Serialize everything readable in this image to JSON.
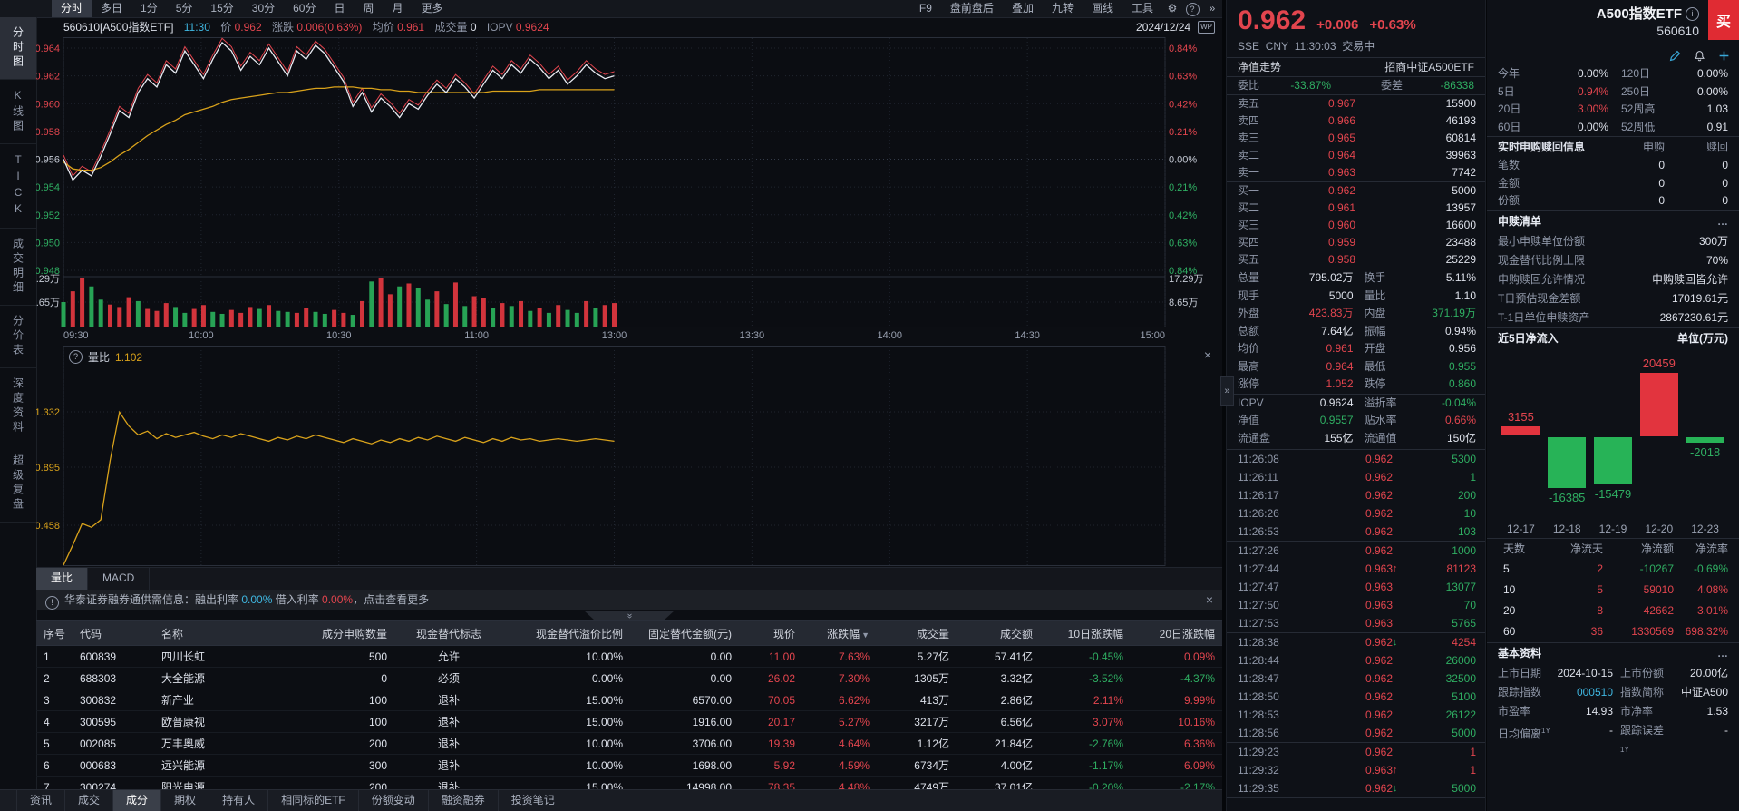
{
  "topbar": {
    "tabs": [
      "分时",
      "多日",
      "1分",
      "5分",
      "15分",
      "30分",
      "60分",
      "日",
      "周",
      "月",
      "更多"
    ],
    "active": "分时",
    "right_items": [
      "F9",
      "盘前盘后",
      "叠加",
      "九转",
      "画线",
      "工具"
    ],
    "gear_icon": "⚙",
    "help_icon": "?",
    "more_icon": "»"
  },
  "sidebar": {
    "items": [
      "分时图",
      "K线图",
      "TICK",
      "成交明细",
      "分价表",
      "深度资料",
      "超级复盘"
    ],
    "active": "分时图"
  },
  "chart_header": {
    "symbol": "560610[A500指数ETF]",
    "time": "11:30",
    "price_label": "价",
    "price": "0.962",
    "change_label": "涨跌",
    "change": "0.006(0.63%)",
    "avg_label": "均价",
    "avg": "0.961",
    "vol_label": "成交量",
    "vol": "0",
    "iopv_label": "IOPV",
    "iopv": "0.9624",
    "date": "2024/12/24",
    "wp_icon": "WP"
  },
  "chart_data": [
    {
      "id": "intraday",
      "type": "line",
      "title": "分时走势",
      "x_span": [
        "09:30",
        "11:30"
      ],
      "axis_times": [
        "09:30",
        "10:00",
        "10:30",
        "11:00",
        "13:00",
        "13:30",
        "14:00",
        "14:30",
        "15:00"
      ],
      "y_left": [
        "0.964",
        "0.962",
        "0.960",
        "0.958",
        "0.956",
        "0.954",
        "0.952",
        "0.950",
        "0.948"
      ],
      "y_right": [
        "0.84%",
        "0.63%",
        "0.42%",
        "0.21%",
        "0.00%",
        "0.21%",
        "0.42%",
        "0.63%",
        "0.84%"
      ],
      "prev_close": 0.956,
      "series": [
        {
          "name": "price",
          "color": "#e8ebf2",
          "values": [
            0.956,
            0.9545,
            0.9552,
            0.9548,
            0.9562,
            0.9578,
            0.9595,
            0.959,
            0.9608,
            0.9618,
            0.9612,
            0.9628,
            0.9622,
            0.9638,
            0.9628,
            0.9618,
            0.9632,
            0.9644,
            0.9638,
            0.9624,
            0.9634,
            0.9628,
            0.964,
            0.963,
            0.962,
            0.9638,
            0.9632,
            0.9642,
            0.9636,
            0.9626,
            0.9616,
            0.9598,
            0.9608,
            0.9594,
            0.9604,
            0.9598,
            0.959,
            0.96,
            0.9596,
            0.9606,
            0.9614,
            0.9608,
            0.9618,
            0.9612,
            0.9604,
            0.9614,
            0.9624,
            0.9618,
            0.9628,
            0.9622,
            0.9632,
            0.9626,
            0.9618,
            0.9624,
            0.9614,
            0.962,
            0.9628,
            0.9622,
            0.9618,
            0.962
          ]
        },
        {
          "name": "avg",
          "color": "#d9a21b",
          "values": [
            0.9558,
            0.9553,
            0.9552,
            0.9552,
            0.9554,
            0.9558,
            0.9563,
            0.9567,
            0.9572,
            0.9577,
            0.9581,
            0.9585,
            0.9588,
            0.9592,
            0.9594,
            0.9596,
            0.9598,
            0.9601,
            0.9603,
            0.9604,
            0.9605,
            0.9606,
            0.9607,
            0.9608,
            0.9608,
            0.9609,
            0.961,
            0.9611,
            0.9611,
            0.9612,
            0.9612,
            0.9612,
            0.9611,
            0.9611,
            0.961,
            0.961,
            0.9609,
            0.9609,
            0.9608,
            0.9608,
            0.9608,
            0.9608,
            0.9608,
            0.9608,
            0.9608,
            0.9608,
            0.9609,
            0.9609,
            0.9609,
            0.9609,
            0.9609,
            0.961,
            0.961,
            0.961,
            0.961,
            0.961,
            0.961,
            0.961,
            0.961,
            0.961
          ]
        }
      ]
    },
    {
      "id": "volume",
      "type": "bar",
      "axis_labels": [
        "17.29万",
        "8.65万"
      ],
      "heights": [
        0.5,
        0.72,
        1.0,
        0.82,
        0.55,
        0.45,
        0.4,
        0.6,
        0.52,
        0.36,
        0.32,
        0.48,
        0.4,
        0.28,
        0.36,
        0.44,
        0.3,
        0.26,
        0.34,
        0.28,
        0.4,
        0.36,
        0.44,
        0.32,
        0.3,
        0.28,
        0.38,
        0.3,
        0.26,
        0.34,
        0.28,
        0.24,
        0.52,
        0.92,
        1.0,
        0.66,
        0.82,
        0.88,
        0.78,
        0.55,
        0.72,
        0.46,
        0.9,
        0.42,
        0.62,
        0.58,
        0.38,
        0.48,
        0.42,
        0.52,
        0.32,
        0.38,
        0.28,
        0.44,
        0.34,
        0.28,
        0.52,
        0.38,
        0.44,
        0.48
      ],
      "colors": [
        "g",
        "r",
        "r",
        "g",
        "g",
        "r",
        "r",
        "r",
        "g",
        "r",
        "r",
        "r",
        "g",
        "g",
        "r",
        "r",
        "g",
        "g",
        "r",
        "r",
        "r",
        "g",
        "r",
        "g",
        "g",
        "r",
        "r",
        "g",
        "g",
        "r",
        "r",
        "g",
        "r",
        "g",
        "r",
        "r",
        "g",
        "r",
        "g",
        "g",
        "r",
        "g",
        "r",
        "g",
        "r",
        "r",
        "g",
        "r",
        "g",
        "r",
        "g",
        "r",
        "g",
        "r",
        "g",
        "g",
        "r",
        "g",
        "r",
        "r"
      ]
    },
    {
      "id": "liangbi",
      "type": "line",
      "name": "量比",
      "current": "1.102",
      "help_icon": "?",
      "close_icon": "×",
      "y_labels": [
        "1.332",
        "0.895",
        "0.458"
      ],
      "values": [
        0.08,
        0.28,
        0.45,
        0.42,
        0.48,
        0.95,
        1.33,
        1.22,
        1.15,
        1.18,
        1.12,
        1.16,
        1.13,
        1.15,
        1.17,
        1.14,
        1.12,
        1.15,
        1.13,
        1.16,
        1.14,
        1.12,
        1.1,
        1.13,
        1.11,
        1.14,
        1.12,
        1.15,
        1.13,
        1.11,
        1.09,
        1.12,
        1.1,
        1.08,
        1.11,
        1.09,
        1.12,
        1.1,
        1.13,
        1.11,
        1.14,
        1.12,
        1.1,
        1.13,
        1.11,
        1.09,
        1.12,
        1.1,
        1.13,
        1.11,
        1.12,
        1.1,
        1.11,
        1.12,
        1.11,
        1.1,
        1.11,
        1.12,
        1.11,
        1.1
      ]
    },
    {
      "id": "flow5d",
      "type": "bar",
      "title": "近5日净流入",
      "unit": "单位(万元)",
      "categories": [
        "12-17",
        "12-18",
        "12-19",
        "12-20",
        "12-23"
      ],
      "values": [
        3155,
        -16385,
        -15479,
        20459,
        -2018
      ]
    }
  ],
  "indicator_tabs": {
    "tabs": [
      "量比",
      "MACD"
    ],
    "active": "量比"
  },
  "notice": {
    "icon": "!",
    "prefix": "华泰证券融券通供需信息：融出利率 ",
    "rate_out": "0.00%",
    "mid": "  借入利率 ",
    "rate_in": "0.00%",
    "suffix": "，点击查看更多",
    "close_icon": "×"
  },
  "components_table": {
    "headers": [
      "序号",
      "代码",
      "名称",
      "成分申购数量",
      "现金替代标志",
      "现金替代溢价比例",
      "固定替代金额(元)",
      "现价",
      "涨跌幅",
      "成交量",
      "成交额",
      "10日涨跌幅",
      "20日涨跌幅"
    ],
    "aligns": [
      "l",
      "l",
      "l",
      "r",
      "c",
      "r",
      "r",
      "r",
      "r",
      "r",
      "r",
      "r",
      "r"
    ],
    "sort_col": "涨跌幅",
    "rows": [
      {
        "cells": [
          "1",
          "600839",
          "四川长虹",
          "500",
          "允许",
          "10.00%",
          "0.00",
          "11.00",
          "7.63%",
          "5.27亿",
          "57.41亿",
          "-0.45%",
          "0.09%"
        ],
        "colors": [
          "w",
          "w",
          "w",
          "w",
          "w",
          "w",
          "w",
          "r",
          "r",
          "w",
          "w",
          "g",
          "r"
        ]
      },
      {
        "cells": [
          "2",
          "688303",
          "大全能源",
          "0",
          "必须",
          "0.00%",
          "0.00",
          "26.02",
          "7.30%",
          "1305万",
          "3.32亿",
          "-3.52%",
          "-4.37%"
        ],
        "colors": [
          "w",
          "w",
          "w",
          "w",
          "w",
          "w",
          "w",
          "r",
          "r",
          "w",
          "w",
          "g",
          "g"
        ]
      },
      {
        "cells": [
          "3",
          "300832",
          "新产业",
          "100",
          "退补",
          "15.00%",
          "6570.00",
          "70.05",
          "6.62%",
          "413万",
          "2.86亿",
          "2.11%",
          "9.99%"
        ],
        "colors": [
          "w",
          "w",
          "w",
          "w",
          "w",
          "w",
          "w",
          "r",
          "r",
          "w",
          "w",
          "r",
          "r"
        ]
      },
      {
        "cells": [
          "4",
          "300595",
          "欧普康视",
          "100",
          "退补",
          "15.00%",
          "1916.00",
          "20.17",
          "5.27%",
          "3217万",
          "6.56亿",
          "3.07%",
          "10.16%"
        ],
        "colors": [
          "w",
          "w",
          "w",
          "w",
          "w",
          "w",
          "w",
          "r",
          "r",
          "w",
          "w",
          "r",
          "r"
        ]
      },
      {
        "cells": [
          "5",
          "002085",
          "万丰奥威",
          "200",
          "退补",
          "10.00%",
          "3706.00",
          "19.39",
          "4.64%",
          "1.12亿",
          "21.84亿",
          "-2.76%",
          "6.36%"
        ],
        "colors": [
          "w",
          "w",
          "w",
          "w",
          "w",
          "w",
          "w",
          "r",
          "r",
          "w",
          "w",
          "g",
          "r"
        ]
      },
      {
        "cells": [
          "6",
          "000683",
          "远兴能源",
          "300",
          "退补",
          "10.00%",
          "1698.00",
          "5.92",
          "4.59%",
          "6734万",
          "4.00亿",
          "-1.17%",
          "6.09%"
        ],
        "colors": [
          "w",
          "w",
          "w",
          "w",
          "w",
          "w",
          "w",
          "r",
          "r",
          "w",
          "w",
          "g",
          "r"
        ]
      },
      {
        "cells": [
          "7",
          "300274",
          "阳光电源",
          "200",
          "退补",
          "15.00%",
          "14998.00",
          "78.35",
          "4.48%",
          "4749万",
          "37.01亿",
          "-0.20%",
          "-2.17%"
        ],
        "colors": [
          "w",
          "w",
          "w",
          "w",
          "w",
          "w",
          "w",
          "r",
          "r",
          "w",
          "w",
          "g",
          "g"
        ]
      }
    ]
  },
  "bottom_tabs": {
    "tabs": [
      "资讯",
      "成交",
      "成分",
      "期权",
      "持有人",
      "相同标的ETF",
      "份额变动",
      "融资融券",
      "投资笔记"
    ],
    "active": "成分"
  },
  "quote": {
    "price": "0.962",
    "change": "+0.006",
    "pct": "+0.63%",
    "exchange": "SSE",
    "currency": "CNY",
    "time": "11:30:03",
    "status": "交易中",
    "nav_label": "净值走势",
    "fund_name": "招商中证A500ETF",
    "weibi_label": "委比",
    "weibi": "-33.87%",
    "weicha_label": "委差",
    "weicha": "-86338",
    "asks": [
      [
        "卖五",
        "0.967",
        "15900"
      ],
      [
        "卖四",
        "0.966",
        "46193"
      ],
      [
        "卖三",
        "0.965",
        "60814"
      ],
      [
        "卖二",
        "0.964",
        "39963"
      ],
      [
        "卖一",
        "0.963",
        "7742"
      ]
    ],
    "bids": [
      [
        "买一",
        "0.962",
        "5000"
      ],
      [
        "买二",
        "0.961",
        "13957"
      ],
      [
        "买三",
        "0.960",
        "16600"
      ],
      [
        "买四",
        "0.959",
        "23488"
      ],
      [
        "买五",
        "0.958",
        "25229"
      ]
    ],
    "stats": [
      [
        "总量",
        "795.02万",
        "w",
        "换手",
        "5.11%",
        "w",
        false
      ],
      [
        "现手",
        "5000",
        "w",
        "量比",
        "1.10",
        "w",
        false
      ],
      [
        "外盘",
        "423.83万",
        "r",
        "内盘",
        "371.19万",
        "g",
        false
      ],
      [
        "总额",
        "7.64亿",
        "w",
        "振幅",
        "0.94%",
        "w",
        false
      ],
      [
        "均价",
        "0.961",
        "r",
        "开盘",
        "0.956",
        "w",
        false
      ],
      [
        "最高",
        "0.964",
        "r",
        "最低",
        "0.955",
        "g",
        false
      ],
      [
        "涨停",
        "1.052",
        "r",
        "跌停",
        "0.860",
        "g",
        false
      ],
      [
        "IOPV",
        "0.9624",
        "w",
        "溢折率",
        "-0.04%",
        "g",
        true
      ],
      [
        "净值",
        "0.9557",
        "g",
        "贴水率",
        "0.66%",
        "r",
        false
      ],
      [
        "流通盘",
        "155亿",
        "w",
        "流通值",
        "150亿",
        "w",
        false
      ]
    ],
    "ticks": [
      [
        "11:26:08",
        "0.962",
        "",
        "5300",
        "g",
        false
      ],
      [
        "11:26:11",
        "0.962",
        "",
        "1",
        "g",
        false
      ],
      [
        "11:26:17",
        "0.962",
        "",
        "200",
        "g",
        false
      ],
      [
        "11:26:26",
        "0.962",
        "",
        "10",
        "g",
        false
      ],
      [
        "11:26:53",
        "0.962",
        "",
        "103",
        "g",
        true
      ],
      [
        "11:27:26",
        "0.962",
        "",
        "1000",
        "g",
        false
      ],
      [
        "11:27:44",
        "0.963",
        "u",
        "81123",
        "r",
        false
      ],
      [
        "11:27:47",
        "0.963",
        "",
        "13077",
        "g",
        false
      ],
      [
        "11:27:50",
        "0.963",
        "",
        "70",
        "g",
        false
      ],
      [
        "11:27:53",
        "0.963",
        "",
        "5765",
        "g",
        true
      ],
      [
        "11:28:38",
        "0.962",
        "d",
        "4254",
        "r",
        false
      ],
      [
        "11:28:44",
        "0.962",
        "",
        "26000",
        "g",
        false
      ],
      [
        "11:28:47",
        "0.962",
        "",
        "32500",
        "g",
        false
      ],
      [
        "11:28:50",
        "0.962",
        "",
        "5100",
        "g",
        false
      ],
      [
        "11:28:53",
        "0.962",
        "",
        "26122",
        "g",
        false
      ],
      [
        "11:28:56",
        "0.962",
        "",
        "5000",
        "g",
        true
      ],
      [
        "11:29:23",
        "0.962",
        "",
        "1",
        "r",
        false
      ],
      [
        "11:29:32",
        "0.963",
        "u",
        "1",
        "r",
        false
      ],
      [
        "11:29:35",
        "0.962",
        "d",
        "5000",
        "g",
        true
      ]
    ]
  },
  "right_panel": {
    "name": "A500指数ETF",
    "code": "560610",
    "buy_label": "买",
    "info_icon": "i",
    "icons": [
      "edit-icon",
      "bell-icon",
      "plus-icon"
    ],
    "perf": [
      [
        "今年",
        "0.00%",
        "w",
        "120日",
        "0.00%",
        "w"
      ],
      [
        "5日",
        "0.94%",
        "r",
        "250日",
        "0.00%",
        "w"
      ],
      [
        "20日",
        "3.00%",
        "r",
        "52周高",
        "1.03",
        "w"
      ],
      [
        "60日",
        "0.00%",
        "w",
        "52周低",
        "0.91",
        "w"
      ]
    ],
    "realtime": {
      "title": "实时申购赎回信息",
      "col1": "申购",
      "col2": "赎回",
      "rows": [
        [
          "笔数",
          "0",
          "0"
        ],
        [
          "金额",
          "0",
          "0"
        ],
        [
          "份额",
          "0",
          "0"
        ]
      ]
    },
    "shenshu": {
      "title": "申赎清单",
      "more": "…",
      "rows": [
        [
          "最小申赎单位份额",
          "300万"
        ],
        [
          "现金替代比例上限",
          "70%"
        ],
        [
          "申购赎回允许情况",
          "申购赎回皆允许"
        ],
        [
          "T日预估现金差额",
          "17019.61元"
        ],
        [
          "T-1日单位申赎资产",
          "2867230.61元"
        ]
      ]
    },
    "flow_title": "近5日净流入",
    "flow_unit": "单位(万元)",
    "flow_table": {
      "headers": [
        "天数",
        "净流天",
        "净流额",
        "净流率"
      ],
      "rows": [
        {
          "c": [
            "5",
            "2",
            "-10267",
            "-0.69%"
          ],
          "k": [
            "w",
            "r",
            "g",
            "g"
          ]
        },
        {
          "c": [
            "10",
            "5",
            "59010",
            "4.08%"
          ],
          "k": [
            "w",
            "r",
            "r",
            "r"
          ]
        },
        {
          "c": [
            "20",
            "8",
            "42662",
            "3.01%"
          ],
          "k": [
            "w",
            "r",
            "r",
            "r"
          ]
        },
        {
          "c": [
            "60",
            "36",
            "1330569",
            "698.32%"
          ],
          "k": [
            "w",
            "r",
            "r",
            "r"
          ]
        }
      ]
    },
    "basic": {
      "title": "基本资料",
      "more": "…",
      "rows": [
        {
          "l1": "上市日期",
          "v1": "2024-10-15",
          "k1": "w",
          "l2": "上市份额",
          "v2": "20.00亿",
          "k2": "w"
        },
        {
          "l1": "跟踪指数",
          "v1": "000510",
          "k1": "c",
          "l2": "指数简称",
          "v2": "中证A500",
          "k2": "w"
        },
        {
          "l1": "市盈率",
          "v1": "14.93",
          "k1": "w",
          "l2": "市净率",
          "v2": "1.53",
          "k2": "w"
        },
        {
          "l1": "日均偏离",
          "s1": "1Y",
          "v1": "-",
          "k1": "w",
          "l2": "跟踪误差",
          "s2": "1Y",
          "v2": "-",
          "k2": "w"
        }
      ]
    }
  }
}
